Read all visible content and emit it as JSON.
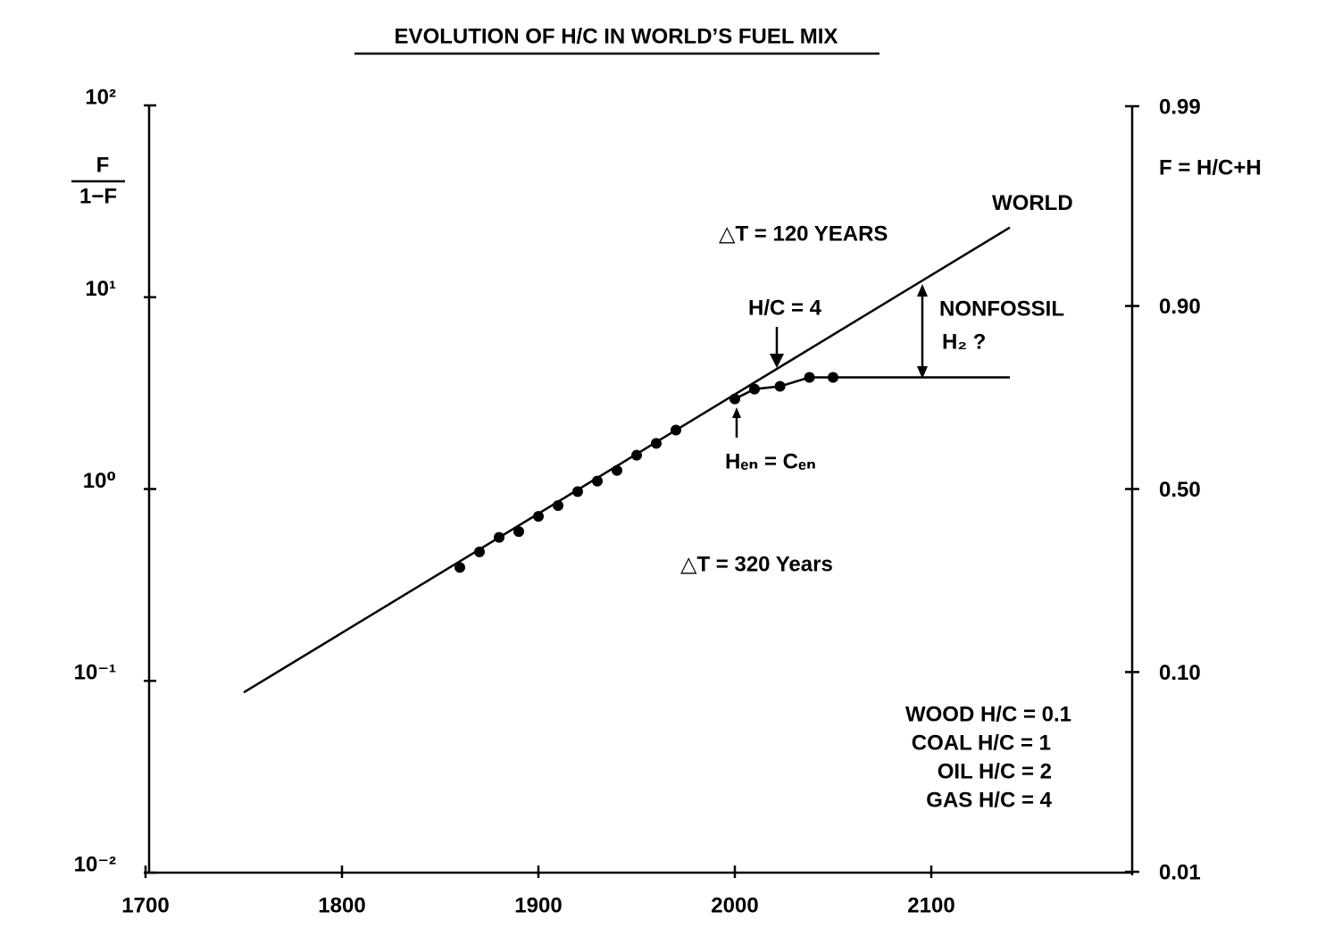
{
  "chart_data": {
    "type": "line",
    "title": "EVOLUTION OF H/C IN WORLD’S FUEL MIX",
    "y_label": [
      "F",
      "1−F"
    ],
    "y2_label": "F = H/C+H",
    "xlim": [
      1700,
      2200
    ],
    "xticks": [
      1700,
      1800,
      1900,
      2000,
      2100
    ],
    "ylim": [
      0.01,
      100
    ],
    "yscale": "log",
    "yticks": [
      {
        "value": 100,
        "label": "10²"
      },
      {
        "value": 10,
        "label": "10¹"
      },
      {
        "value": 1,
        "label": "10⁰"
      },
      {
        "value": 0.1,
        "label": "10⁻¹"
      },
      {
        "value": 0.01,
        "label": "10⁻²"
      }
    ],
    "y2scale": "logit",
    "y2lim": [
      0.0099,
      0.9901
    ],
    "y2ticks": [
      0.99,
      {
        "value": 0.9,
        "label": "0.90"
      },
      {
        "value": 0.5,
        "label": "0.50"
      },
      {
        "value": 0.1,
        "label": "0.10"
      },
      0.01
    ],
    "color": "#000000",
    "series": [
      {
        "name": "WORLD",
        "x": [
          1750,
          2140
        ],
        "values": [
          0.087,
          23.1
        ]
      },
      {
        "x": [
          1860,
          1870,
          1880,
          1890,
          1900,
          1910,
          1920,
          1930,
          1940,
          1950,
          1960,
          1970,
          2000,
          2010,
          2023,
          2038,
          2050
        ],
        "values": [
          0.39,
          0.47,
          0.56,
          0.6,
          0.72,
          0.82,
          0.97,
          1.1,
          1.25,
          1.5,
          1.73,
          2.03,
          2.95,
          3.32,
          3.43,
          3.82,
          3.82
        ],
        "markers": true
      },
      {
        "x": [
          2000,
          2010,
          2023,
          2038,
          2050,
          2140
        ],
        "values": [
          2.95,
          3.32,
          3.43,
          3.82,
          3.82,
          3.82
        ]
      }
    ],
    "annotations": [
      "△T = 120 YEARS",
      "H/C = 4",
      "NONFOSSIL",
      "H₂ ?",
      "Hₑₙ = Cₑₙ",
      "△T = 320 Years",
      "WOOD H/C = 0.1",
      "COAL H/C = 1",
      "OIL H/C = 2",
      "GAS H/C = 4"
    ]
  }
}
